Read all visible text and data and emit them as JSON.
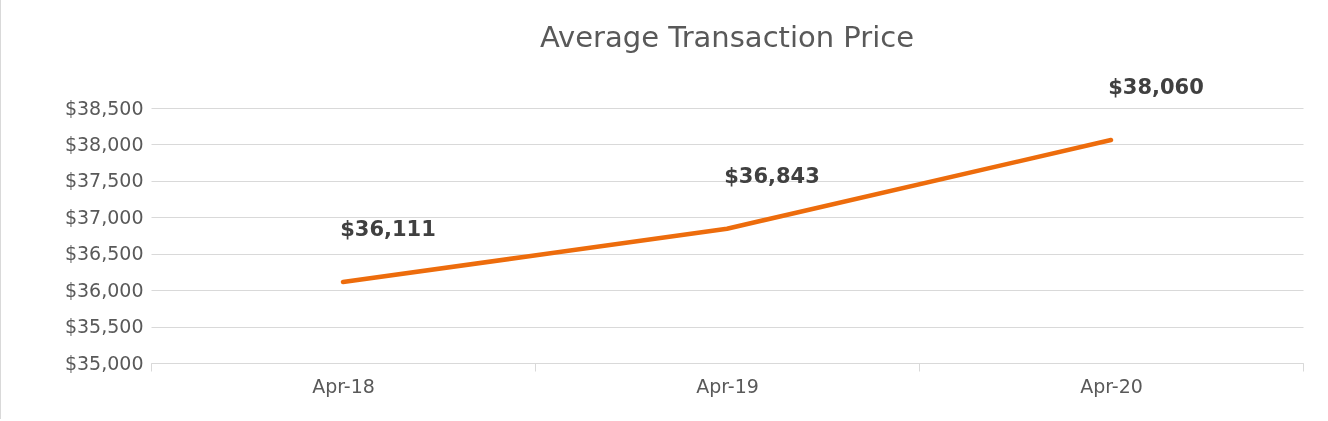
{
  "chart_data": {
    "type": "line",
    "title": "Average Transaction Price",
    "categories": [
      "Apr-18",
      "Apr-19",
      "Apr-20"
    ],
    "series": [
      {
        "color": "#ed6c0c",
        "values": [
          36111,
          36843,
          38060
        ],
        "value_labels": [
          "$36,111",
          "$36,843",
          "$38,060"
        ]
      }
    ],
    "ylim": [
      35000,
      38500
    ],
    "yticks": [
      {
        "value": 35000,
        "label": "$35,000"
      },
      {
        "value": 35500,
        "label": "$35,500"
      },
      {
        "value": 36000,
        "label": "$36,000"
      },
      {
        "value": 36500,
        "label": "$36,500"
      },
      {
        "value": 37000,
        "label": "$37,000"
      },
      {
        "value": 37500,
        "label": "$37,500"
      },
      {
        "value": 38000,
        "label": "$38,000"
      },
      {
        "value": 38500,
        "label": "$38,500"
      }
    ],
    "grid": "y"
  }
}
